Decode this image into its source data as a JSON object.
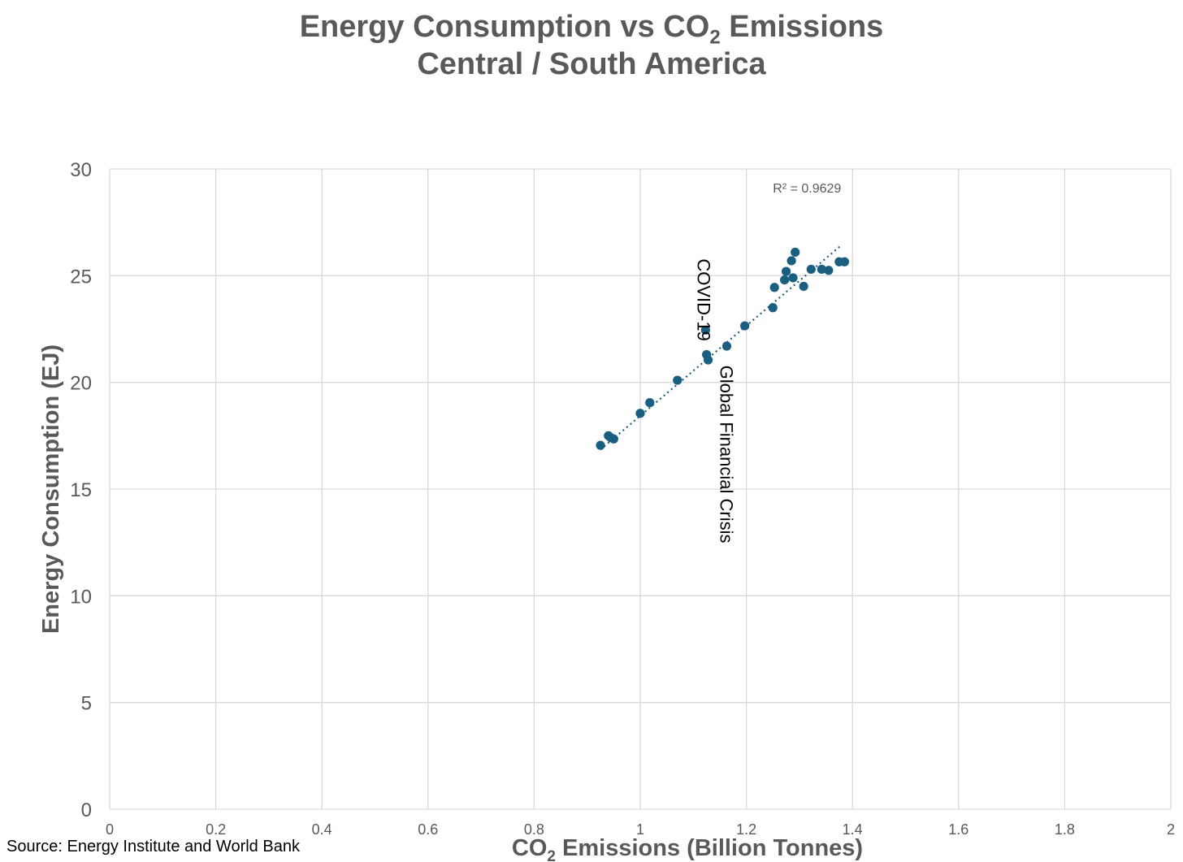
{
  "chart_data": {
    "type": "scatter",
    "title_line1_prefix": "Energy Consumption vs CO",
    "title_line1_sub": "2",
    "title_line1_suffix": " Emissions",
    "title_line2": "Central / South America",
    "xlabel_prefix": "CO",
    "xlabel_sub": "2",
    "xlabel_suffix": " Emissions (Billion Tonnes)",
    "ylabel": "Energy Consumption (EJ)",
    "xlim": [
      0,
      2
    ],
    "ylim": [
      0,
      30
    ],
    "x_ticks": [
      0,
      0.2,
      0.4,
      0.6,
      0.8,
      1,
      1.2,
      1.4,
      1.6,
      1.8,
      2
    ],
    "y_ticks": [
      0,
      5,
      10,
      15,
      20,
      25,
      30
    ],
    "grid": true,
    "point_color": "#1a5f80",
    "series": [
      {
        "name": "Central / South America",
        "x": [
          0.925,
          0.94,
          0.945,
          0.95,
          1.0,
          1.018,
          1.07,
          1.123,
          1.125,
          1.128,
          1.163,
          1.197,
          1.25,
          1.253,
          1.272,
          1.275,
          1.285,
          1.288,
          1.292,
          1.308,
          1.322,
          1.342,
          1.355,
          1.375,
          1.385
        ],
        "y": [
          17.05,
          17.5,
          17.4,
          17.35,
          18.55,
          19.05,
          20.1,
          22.45,
          21.3,
          21.05,
          21.7,
          22.65,
          23.5,
          24.45,
          24.8,
          25.2,
          25.7,
          24.9,
          26.1,
          24.5,
          25.3,
          25.3,
          25.25,
          25.65,
          25.65
        ]
      }
    ],
    "trendline": {
      "style": "dotted linear",
      "x_start": 0.925,
      "y_start": 16.85,
      "x_end": 1.38,
      "y_end": 26.45,
      "r2_label": "R² = 0.9629"
    },
    "annotations": [
      {
        "text": "COVID-19",
        "x": 1.12,
        "y": 25.8,
        "orientation": "vertical"
      },
      {
        "text": "Global Financial Crisis",
        "x": 1.16,
        "y": 20.8,
        "orientation": "vertical"
      }
    ]
  },
  "footer": {
    "source": "Source: Energy Institute and World Bank"
  }
}
